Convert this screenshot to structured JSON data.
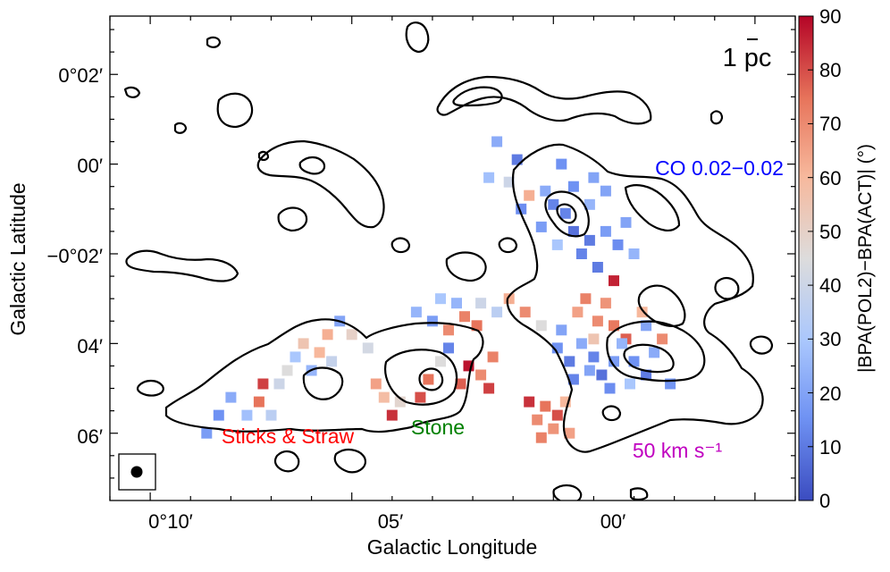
{
  "chart_data": {
    "type": "heatmap",
    "xlabel": "Galactic Longitude",
    "ylabel": "Galactic Latitude",
    "x_ticks": [
      "0°10′",
      "05′",
      "00′"
    ],
    "y_ticks": [
      "0°02′",
      "00′",
      "−0°02′",
      "04′",
      "06′"
    ],
    "xlim_arcmin": [
      11.0,
      -6.0
    ],
    "ylim_arcmin": [
      -7.5,
      3.3
    ],
    "colorbar": {
      "label": "|BPA(POL2)−BPA(ACT)| (°)",
      "ticks": [
        0,
        10,
        20,
        30,
        40,
        50,
        60,
        70,
        80,
        90
      ],
      "range": [
        0,
        90
      ],
      "colormap": "coolwarm",
      "colors": [
        "#3b4cc0",
        "#6f92f3",
        "#aac7fd",
        "#dddcdc",
        "#f7b89c",
        "#e7745b",
        "#b40426"
      ]
    },
    "annotations": [
      {
        "text": "Sticks & Straw",
        "color": "#ff0000"
      },
      {
        "text": "Stone",
        "color": "#008000"
      },
      {
        "text": "50 km s⁻¹",
        "color": "#c000c0"
      },
      {
        "text": "CO 0.02−0.02",
        "color": "#0000ff"
      }
    ],
    "scale_bar": "1 pc",
    "contour_color": "#000000",
    "cells": [
      {
        "l": 8.6,
        "b": -6.0,
        "v": 18
      },
      {
        "l": 8.3,
        "b": -5.6,
        "v": 15
      },
      {
        "l": 8.0,
        "b": -5.2,
        "v": 22
      },
      {
        "l": 7.6,
        "b": -5.6,
        "v": 28
      },
      {
        "l": 7.3,
        "b": -5.3,
        "v": 75
      },
      {
        "l": 7.2,
        "b": -4.9,
        "v": 82
      },
      {
        "l": 7.0,
        "b": -5.6,
        "v": 35
      },
      {
        "l": 6.8,
        "b": -4.9,
        "v": 40
      },
      {
        "l": 6.6,
        "b": -4.6,
        "v": 45
      },
      {
        "l": 6.4,
        "b": -4.3,
        "v": 30
      },
      {
        "l": 6.2,
        "b": -4.0,
        "v": 55
      },
      {
        "l": 6.0,
        "b": -4.6,
        "v": 25
      },
      {
        "l": 5.8,
        "b": -4.2,
        "v": 60
      },
      {
        "l": 5.6,
        "b": -3.8,
        "v": 62
      },
      {
        "l": 5.5,
        "b": -4.4,
        "v": 38
      },
      {
        "l": 5.3,
        "b": -3.5,
        "v": 20
      },
      {
        "l": 5.0,
        "b": -3.8,
        "v": 50
      },
      {
        "l": 4.6,
        "b": -4.1,
        "v": 42
      },
      {
        "l": 4.4,
        "b": -4.9,
        "v": 65
      },
      {
        "l": 4.2,
        "b": -5.2,
        "v": 58
      },
      {
        "l": 4.0,
        "b": -5.6,
        "v": 84
      },
      {
        "l": 3.8,
        "b": -5.3,
        "v": 48
      },
      {
        "l": 3.3,
        "b": -5.2,
        "v": 80
      },
      {
        "l": 3.1,
        "b": -4.8,
        "v": 75
      },
      {
        "l": 2.8,
        "b": -4.4,
        "v": 45
      },
      {
        "l": 2.6,
        "b": -4.1,
        "v": 12
      },
      {
        "l": 2.3,
        "b": -4.9,
        "v": 78
      },
      {
        "l": 2.1,
        "b": -4.5,
        "v": 88
      },
      {
        "l": 1.8,
        "b": -4.7,
        "v": 70
      },
      {
        "l": 1.6,
        "b": -5.0,
        "v": 82
      },
      {
        "l": 1.5,
        "b": -4.3,
        "v": 72
      },
      {
        "l": -1.3,
        "b": -0.6,
        "v": 20
      },
      {
        "l": -0.9,
        "b": -0.9,
        "v": 25
      },
      {
        "l": -0.5,
        "b": -0.5,
        "v": 15
      },
      {
        "l": -0.3,
        "b": -1.1,
        "v": 12
      },
      {
        "l": -0.5,
        "b": -1.5,
        "v": 8
      },
      {
        "l": -0.1,
        "b": -1.8,
        "v": 30
      },
      {
        "l": 0.3,
        "b": -1.4,
        "v": 18
      },
      {
        "l": 0.6,
        "b": -0.7,
        "v": 62
      },
      {
        "l": 0.9,
        "b": 0.1,
        "v": 10
      },
      {
        "l": 1.4,
        "b": 0.5,
        "v": 22
      },
      {
        "l": 1.6,
        "b": -0.3,
        "v": 28
      },
      {
        "l": 1.1,
        "b": -0.4,
        "v": 40
      },
      {
        "l": -0.7,
        "b": -2.0,
        "v": 12
      },
      {
        "l": -1.1,
        "b": -2.3,
        "v": 10
      },
      {
        "l": -1.6,
        "b": -1.8,
        "v": 14
      },
      {
        "l": -1.8,
        "b": -1.3,
        "v": 20
      },
      {
        "l": -2.0,
        "b": -2.0,
        "v": 25
      },
      {
        "l": -1.5,
        "b": -2.6,
        "v": 86
      },
      {
        "l": -1.3,
        "b": -1.5,
        "v": 18
      },
      {
        "l": -0.9,
        "b": -1.7,
        "v": 10
      },
      {
        "l": 0.0,
        "b": -0.9,
        "v": 12
      },
      {
        "l": -1.0,
        "b": -0.3,
        "v": 20
      },
      {
        "l": -0.2,
        "b": 0.0,
        "v": 15
      },
      {
        "l": 0.2,
        "b": -0.6,
        "v": 22
      },
      {
        "l": 0.8,
        "b": -1.0,
        "v": 14
      },
      {
        "l": 3.4,
        "b": -3.3,
        "v": 25
      },
      {
        "l": 3.0,
        "b": -3.5,
        "v": 18
      },
      {
        "l": 2.6,
        "b": -3.7,
        "v": 70
      },
      {
        "l": 2.2,
        "b": -3.4,
        "v": 72
      },
      {
        "l": 1.8,
        "b": -3.1,
        "v": 40
      },
      {
        "l": 1.4,
        "b": -3.3,
        "v": 35
      },
      {
        "l": 1.1,
        "b": -3.0,
        "v": 62
      },
      {
        "l": 0.7,
        "b": -3.3,
        "v": 70
      },
      {
        "l": 0.3,
        "b": -3.6,
        "v": 45
      },
      {
        "l": 2.8,
        "b": -3.0,
        "v": 30
      },
      {
        "l": 2.4,
        "b": -3.1,
        "v": 25
      },
      {
        "l": 1.9,
        "b": -3.6,
        "v": 75
      },
      {
        "l": -0.6,
        "b": -3.3,
        "v": 65
      },
      {
        "l": -0.8,
        "b": -3.0,
        "v": 72
      },
      {
        "l": -1.1,
        "b": -3.5,
        "v": 70
      },
      {
        "l": -1.3,
        "b": -3.1,
        "v": 68
      },
      {
        "l": -1.5,
        "b": -3.6,
        "v": 74
      },
      {
        "l": -1.8,
        "b": -3.9,
        "v": 78
      },
      {
        "l": -0.2,
        "b": -3.7,
        "v": 20
      },
      {
        "l": -2.2,
        "b": -3.3,
        "v": 60
      },
      {
        "l": -1.0,
        "b": -3.9,
        "v": 55
      },
      {
        "l": -0.1,
        "b": -4.1,
        "v": 15
      },
      {
        "l": -0.4,
        "b": -4.4,
        "v": 10
      },
      {
        "l": -0.7,
        "b": -4.0,
        "v": 22
      },
      {
        "l": -1.0,
        "b": -4.3,
        "v": 12
      },
      {
        "l": -1.2,
        "b": -4.7,
        "v": 8
      },
      {
        "l": -1.5,
        "b": -4.4,
        "v": 18
      },
      {
        "l": -1.7,
        "b": -4.0,
        "v": 25
      },
      {
        "l": -2.0,
        "b": -4.4,
        "v": 15
      },
      {
        "l": -2.3,
        "b": -4.7,
        "v": 10
      },
      {
        "l": -0.5,
        "b": -4.8,
        "v": 12
      },
      {
        "l": -0.9,
        "b": -4.6,
        "v": 20
      },
      {
        "l": -1.4,
        "b": -5.0,
        "v": 14
      },
      {
        "l": -1.9,
        "b": -4.9,
        "v": 30
      },
      {
        "l": -2.5,
        "b": -4.2,
        "v": 22
      },
      {
        "l": -2.9,
        "b": -4.9,
        "v": 16
      },
      {
        "l": -2.7,
        "b": -3.9,
        "v": 70
      },
      {
        "l": -2.3,
        "b": -3.6,
        "v": 20
      },
      {
        "l": 0.6,
        "b": -5.3,
        "v": 84
      },
      {
        "l": 0.4,
        "b": -5.7,
        "v": 70
      },
      {
        "l": 0.2,
        "b": -5.4,
        "v": 75
      },
      {
        "l": 0.0,
        "b": -5.9,
        "v": 68
      },
      {
        "l": -0.1,
        "b": -5.6,
        "v": 80
      },
      {
        "l": -0.3,
        "b": -5.3,
        "v": 60
      },
      {
        "l": 0.3,
        "b": -6.1,
        "v": 72
      },
      {
        "l": -0.4,
        "b": -6.0,
        "v": 65
      }
    ]
  }
}
